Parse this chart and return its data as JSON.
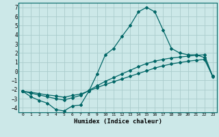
{
  "xlabel": "Humidex (Indice chaleur)",
  "background_color": "#cce8e8",
  "grid_color": "#aacccc",
  "line_color": "#006666",
  "xlim": [
    -0.5,
    23.5
  ],
  "ylim": [
    -4.5,
    7.5
  ],
  "xticks": [
    0,
    1,
    2,
    3,
    4,
    5,
    6,
    7,
    8,
    9,
    10,
    11,
    12,
    13,
    14,
    15,
    16,
    17,
    18,
    19,
    20,
    21,
    22,
    23
  ],
  "yticks": [
    -4,
    -3,
    -2,
    -1,
    0,
    1,
    2,
    3,
    4,
    5,
    6,
    7
  ],
  "curve1_x": [
    0,
    1,
    2,
    3,
    4,
    5,
    6,
    7,
    8,
    9,
    10,
    11,
    12,
    13,
    14,
    15,
    16,
    17,
    18,
    19,
    20,
    21,
    22,
    23
  ],
  "curve1_y": [
    -2.2,
    -2.8,
    -3.2,
    -3.5,
    -4.2,
    -4.35,
    -3.8,
    -3.7,
    -2.2,
    -0.3,
    1.8,
    2.5,
    3.8,
    5.0,
    6.5,
    7.0,
    6.5,
    4.5,
    2.5,
    2.0,
    1.8,
    1.8,
    1.5,
    -0.6
  ],
  "curve2_x": [
    0,
    1,
    2,
    3,
    4,
    5,
    6,
    7,
    8,
    9,
    10,
    11,
    12,
    13,
    14,
    15,
    16,
    17,
    18,
    19,
    20,
    21,
    22,
    23
  ],
  "curve2_y": [
    -2.2,
    -2.4,
    -2.6,
    -2.8,
    -3.0,
    -3.15,
    -2.9,
    -2.65,
    -2.1,
    -1.6,
    -1.1,
    -0.7,
    -0.3,
    0.1,
    0.5,
    0.85,
    1.1,
    1.3,
    1.45,
    1.55,
    1.65,
    1.75,
    1.8,
    -0.55
  ],
  "curve3_x": [
    0,
    1,
    2,
    3,
    4,
    5,
    6,
    7,
    8,
    9,
    10,
    11,
    12,
    13,
    14,
    15,
    16,
    17,
    18,
    19,
    20,
    21,
    22,
    23
  ],
  "curve3_y": [
    -2.2,
    -2.3,
    -2.45,
    -2.6,
    -2.7,
    -2.85,
    -2.65,
    -2.5,
    -2.15,
    -1.8,
    -1.45,
    -1.15,
    -0.85,
    -0.55,
    -0.25,
    0.05,
    0.35,
    0.6,
    0.8,
    0.95,
    1.1,
    1.2,
    1.3,
    -0.55
  ]
}
